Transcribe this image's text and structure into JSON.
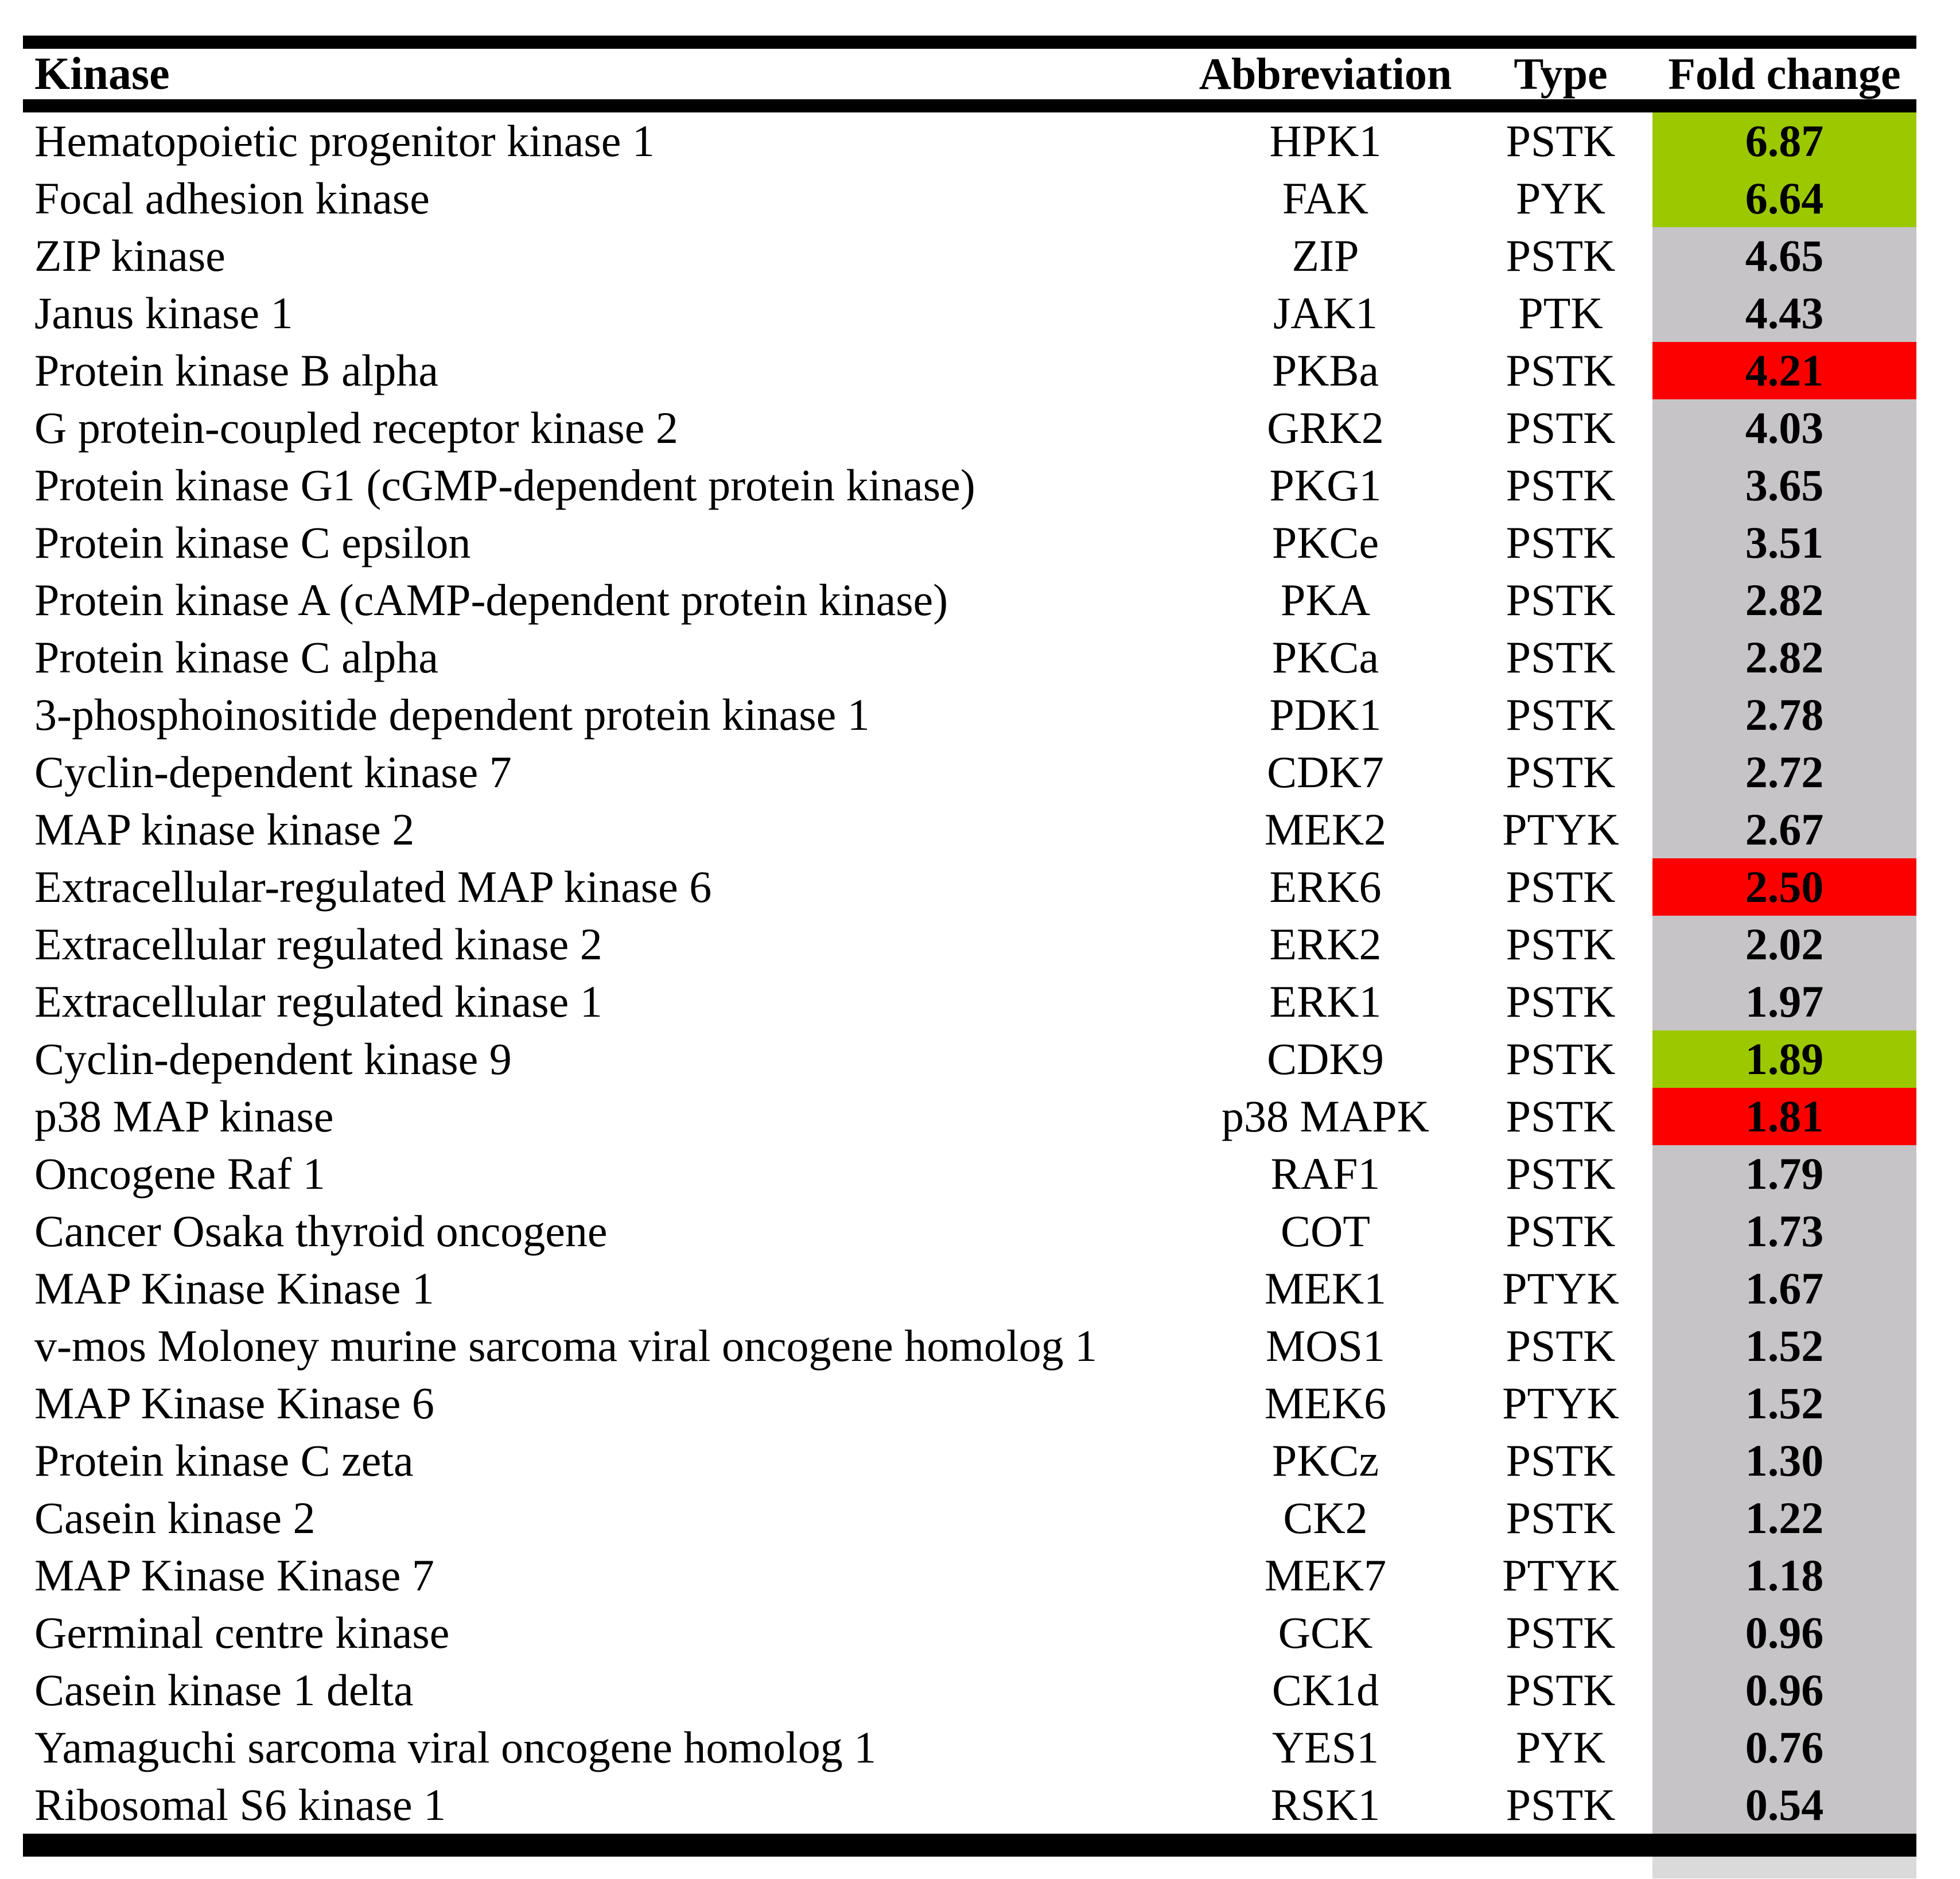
{
  "table": {
    "columns": [
      "Kinase",
      "Abbreviation",
      "Type",
      "Fold change"
    ],
    "highlight_colors": {
      "green": "#9cc800",
      "red": "#fc0000",
      "gray": "#c6c4c6"
    },
    "rows": [
      {
        "kinase": "Hematopoietic progenitor kinase 1",
        "abbr": "HPK1",
        "type": "PSTK",
        "fold": "6.87",
        "highlight": "green"
      },
      {
        "kinase": "Focal adhesion kinase",
        "abbr": "FAK",
        "type": "PYK",
        "fold": "6.64",
        "highlight": "green"
      },
      {
        "kinase": "ZIP kinase",
        "abbr": "ZIP",
        "type": "PSTK",
        "fold": "4.65",
        "highlight": "gray"
      },
      {
        "kinase": "Janus kinase 1",
        "abbr": "JAK1",
        "type": "PTK",
        "fold": "4.43",
        "highlight": "gray"
      },
      {
        "kinase": "Protein kinase B alpha",
        "abbr": "PKBa",
        "type": "PSTK",
        "fold": "4.21",
        "highlight": "red"
      },
      {
        "kinase": "G protein-coupled receptor kinase 2",
        "abbr": "GRK2",
        "type": "PSTK",
        "fold": "4.03",
        "highlight": "gray"
      },
      {
        "kinase": "Protein kinase G1 (cGMP-dependent protein kinase)",
        "abbr": "PKG1",
        "type": "PSTK",
        "fold": "3.65",
        "highlight": "gray"
      },
      {
        "kinase": "Protein kinase C epsilon",
        "abbr": "PKCe",
        "type": "PSTK",
        "fold": "3.51",
        "highlight": "gray"
      },
      {
        "kinase": "Protein kinase A (cAMP-dependent protein kinase)",
        "abbr": "PKA",
        "type": "PSTK",
        "fold": "2.82",
        "highlight": "gray"
      },
      {
        "kinase": "Protein kinase C alpha",
        "abbr": "PKCa",
        "type": "PSTK",
        "fold": "2.82",
        "highlight": "gray"
      },
      {
        "kinase": "3-phosphoinositide dependent protein kinase 1",
        "abbr": "PDK1",
        "type": "PSTK",
        "fold": "2.78",
        "highlight": "gray"
      },
      {
        "kinase": "Cyclin-dependent kinase 7",
        "abbr": "CDK7",
        "type": "PSTK",
        "fold": "2.72",
        "highlight": "gray"
      },
      {
        "kinase": "MAP kinase kinase 2",
        "abbr": "MEK2",
        "type": "PTYK",
        "fold": "2.67",
        "highlight": "gray"
      },
      {
        "kinase": "Extracellular-regulated MAP kinase 6",
        "abbr": "ERK6",
        "type": "PSTK",
        "fold": "2.50",
        "highlight": "red"
      },
      {
        "kinase": "Extracellular regulated kinase 2",
        "abbr": "ERK2",
        "type": "PSTK",
        "fold": "2.02",
        "highlight": "gray"
      },
      {
        "kinase": "Extracellular regulated kinase 1",
        "abbr": "ERK1",
        "type": "PSTK",
        "fold": "1.97",
        "highlight": "gray"
      },
      {
        "kinase": "Cyclin-dependent kinase 9",
        "abbr": "CDK9",
        "type": "PSTK",
        "fold": "1.89",
        "highlight": "green"
      },
      {
        "kinase": "p38 MAP kinase",
        "abbr": "p38 MAPK",
        "type": "PSTK",
        "fold": "1.81",
        "highlight": "red"
      },
      {
        "kinase": "Oncogene Raf 1",
        "abbr": "RAF1",
        "type": "PSTK",
        "fold": "1.79",
        "highlight": "gray"
      },
      {
        "kinase": "Cancer Osaka thyroid oncogene",
        "abbr": "COT",
        "type": "PSTK",
        "fold": "1.73",
        "highlight": "gray"
      },
      {
        "kinase": "MAP Kinase Kinase 1",
        "abbr": "MEK1",
        "type": "PTYK",
        "fold": "1.67",
        "highlight": "gray"
      },
      {
        "kinase": "v-mos Moloney murine sarcoma viral oncogene homolog 1",
        "abbr": "MOS1",
        "type": "PSTK",
        "fold": "1.52",
        "highlight": "gray"
      },
      {
        "kinase": "MAP Kinase Kinase 6",
        "abbr": "MEK6",
        "type": "PTYK",
        "fold": "1.52",
        "highlight": "gray"
      },
      {
        "kinase": "Protein kinase C zeta",
        "abbr": "PKCz",
        "type": "PSTK",
        "fold": "1.30",
        "highlight": "gray"
      },
      {
        "kinase": "Casein kinase 2",
        "abbr": "CK2",
        "type": "PSTK",
        "fold": "1.22",
        "highlight": "gray"
      },
      {
        "kinase": "MAP Kinase Kinase 7",
        "abbr": "MEK7",
        "type": "PTYK",
        "fold": "1.18",
        "highlight": "gray"
      },
      {
        "kinase": "Germinal centre kinase",
        "abbr": "GCK",
        "type": "PSTK",
        "fold": "0.96",
        "highlight": "gray"
      },
      {
        "kinase": "Casein kinase 1 delta",
        "abbr": "CK1d",
        "type": "PSTK",
        "fold": "0.96",
        "highlight": "gray"
      },
      {
        "kinase": "Yamaguchi sarcoma viral oncogene homolog 1",
        "abbr": "YES1",
        "type": "PYK",
        "fold": "0.76",
        "highlight": "gray"
      },
      {
        "kinase": "Ribosomal S6 kinase 1",
        "abbr": "RSK1",
        "type": "PSTK",
        "fold": "0.54",
        "highlight": "gray"
      }
    ]
  }
}
